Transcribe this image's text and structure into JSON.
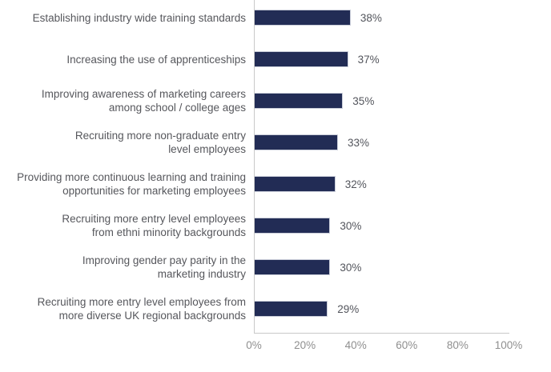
{
  "chart_data": {
    "type": "bar",
    "orientation": "horizontal",
    "title": "",
    "xlabel": "",
    "ylabel": "",
    "grid": false,
    "legend": false,
    "xlim": [
      0,
      100
    ],
    "x_tick_labels": [
      "0%",
      "20%",
      "40%",
      "60%",
      "80%",
      "100%"
    ],
    "categories": [
      "Establishing industry wide training standards",
      "Increasing the use of apprenticeships",
      "Improving awareness of marketing careers\namong school / college ages",
      "Recruiting more non-graduate entry\nlevel employees",
      "Providing more continuous learning and training\nopportunities for marketing employees",
      "Recruiting more entry level employees\nfrom ethni minority backgrounds",
      "Improving gender pay parity in the\nmarketing industry",
      "Recruiting more entry level employees from\nmore diverse UK regional backgrounds"
    ],
    "values": [
      38,
      37,
      35,
      33,
      32,
      30,
      30,
      29
    ],
    "data_labels": [
      "38%",
      "37%",
      "35%",
      "33%",
      "32%",
      "30%",
      "30%",
      "29%"
    ]
  },
  "colors": {
    "bar_fill": "#222c55",
    "bar_border": "#c9cdd9",
    "axis_line": "#c9c9c9",
    "category_text": "#56575c",
    "value_text": "#53555c",
    "tick_text": "#8f8f8f",
    "background": "#ffffff"
  }
}
